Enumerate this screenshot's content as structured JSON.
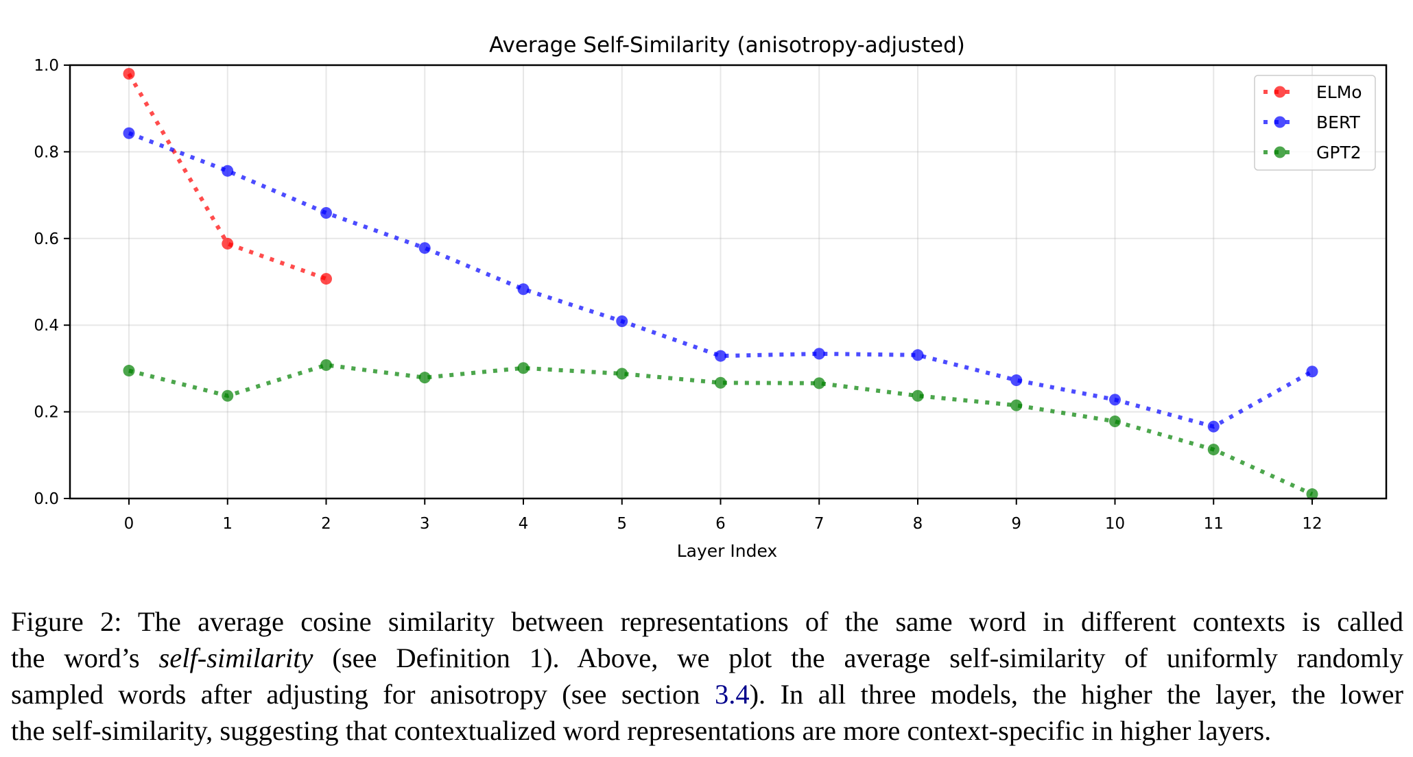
{
  "chart_data": {
    "type": "line",
    "title": "Average Self-Similarity (anisotropy-adjusted)",
    "xlabel": "Layer Index",
    "ylabel": "",
    "x": [
      0,
      1,
      2,
      3,
      4,
      5,
      6,
      7,
      8,
      9,
      10,
      11,
      12
    ],
    "xticks": [
      "0",
      "1",
      "2",
      "3",
      "4",
      "5",
      "6",
      "7",
      "8",
      "9",
      "10",
      "11",
      "12"
    ],
    "yticks": [
      "0.0",
      "0.2",
      "0.4",
      "0.6",
      "0.8",
      "1.0"
    ],
    "ylim": [
      0,
      1.0
    ],
    "xlim": [
      -0.5,
      12.6
    ],
    "grid": true,
    "legend_position": "top-right",
    "series": [
      {
        "name": "ELMo",
        "color": "#ff0000",
        "line_style": "dotted",
        "marker": "circle",
        "x": [
          0,
          1,
          2
        ],
        "values": [
          0.98,
          0.588,
          0.507
        ]
      },
      {
        "name": "BERT",
        "color": "#0000ff",
        "line_style": "dotted",
        "marker": "circle",
        "x": [
          0,
          1,
          2,
          3,
          4,
          5,
          6,
          7,
          8,
          9,
          10,
          11,
          12
        ],
        "values": [
          0.843,
          0.756,
          0.659,
          0.578,
          0.483,
          0.409,
          0.329,
          0.334,
          0.331,
          0.273,
          0.228,
          0.166,
          0.293
        ]
      },
      {
        "name": "GPT2",
        "color": "#008000",
        "line_style": "dotted",
        "marker": "circle",
        "x": [
          0,
          1,
          2,
          3,
          4,
          5,
          6,
          7,
          8,
          9,
          10,
          11,
          12
        ],
        "values": [
          0.295,
          0.237,
          0.308,
          0.279,
          0.301,
          0.288,
          0.267,
          0.266,
          0.237,
          0.215,
          0.178,
          0.113,
          0.01
        ]
      }
    ]
  },
  "caption": {
    "line1": "Figure 2: The average cosine similarity between representations of the same word in different contexts is called",
    "line2_pre": "the word’s ",
    "line2_em": "self-similarity",
    "line2_post": " (see Definition 1).  Above, we plot the average self-similarity of uniformly randomly",
    "line3_pre": "sampled words after adjusting for anisotropy (see section ",
    "line3_ref": "3.4",
    "line3_post": "). In all three models, the higher the layer, the lower",
    "line4": "the self-similarity, suggesting that contextualized word representations are more context-specific in higher layers."
  }
}
